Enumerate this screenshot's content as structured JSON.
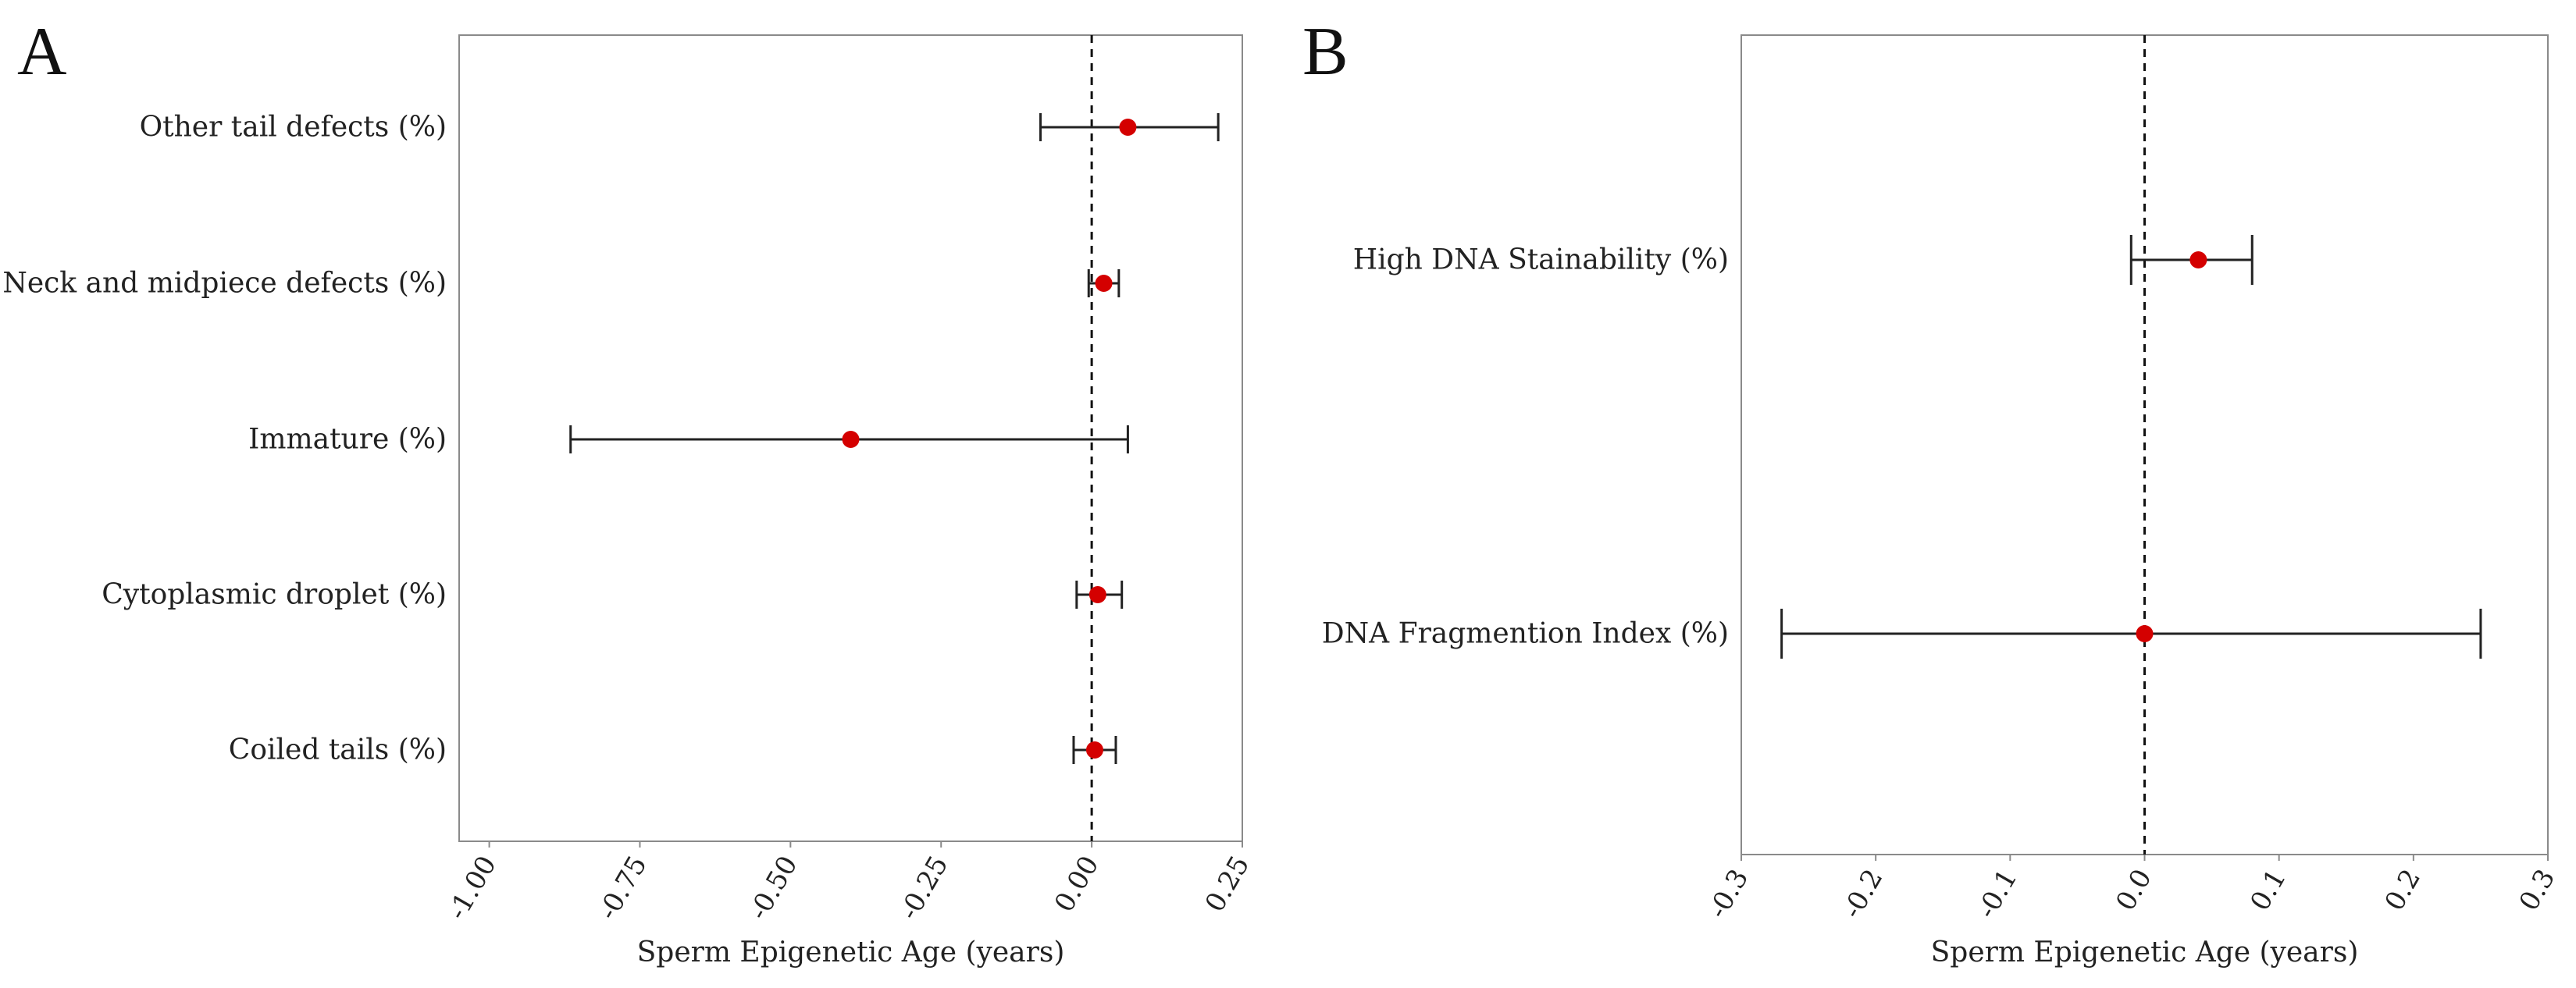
{
  "chart_data": [
    {
      "type": "forest",
      "panel_label": "A",
      "title": "",
      "xlabel": "Sperm Epigenetic Age (years)",
      "ylabel": "",
      "xlim": [
        -1.05,
        0.25
      ],
      "xticks": [
        -1.0,
        -0.75,
        -0.5,
        -0.25,
        0.0,
        0.25
      ],
      "xtick_labels": [
        "-1.00",
        "-0.75",
        "-0.50",
        "-0.25",
        "0.00",
        "0.25"
      ],
      "reference_line": 0.0,
      "point_color": "#d40000",
      "line_color": "#222222",
      "rows": [
        {
          "label": "Other tail defects (%)",
          "estimate": 0.06,
          "lower": -0.085,
          "upper": 0.21
        },
        {
          "label": "Neck and midpiece defects (%)",
          "estimate": 0.02,
          "lower": -0.005,
          "upper": 0.045
        },
        {
          "label": "Immature (%)",
          "estimate": -0.4,
          "lower": -0.865,
          "upper": 0.06
        },
        {
          "label": "Cytoplasmic droplet (%)",
          "estimate": 0.01,
          "lower": -0.025,
          "upper": 0.05
        },
        {
          "label": "Coiled tails (%)",
          "estimate": 0.005,
          "lower": -0.03,
          "upper": 0.04
        }
      ]
    },
    {
      "type": "forest",
      "panel_label": "B",
      "title": "",
      "xlabel": "Sperm Epigenetic Age (years)",
      "ylabel": "",
      "xlim": [
        -0.3,
        0.3
      ],
      "xticks": [
        -0.3,
        -0.2,
        -0.1,
        0.0,
        0.1,
        0.2,
        0.3
      ],
      "xtick_labels": [
        "-0.3",
        "-0.2",
        "-0.1",
        "0.0",
        "0.1",
        "0.2",
        "0.3"
      ],
      "reference_line": 0.0,
      "point_color": "#d40000",
      "line_color": "#222222",
      "rows": [
        {
          "label": "High DNA Stainability (%)",
          "estimate": 0.04,
          "lower": -0.01,
          "upper": 0.08
        },
        {
          "label": "DNA Fragmention Index (%)",
          "estimate": 0.0,
          "lower": -0.27,
          "upper": 0.25
        }
      ]
    }
  ]
}
